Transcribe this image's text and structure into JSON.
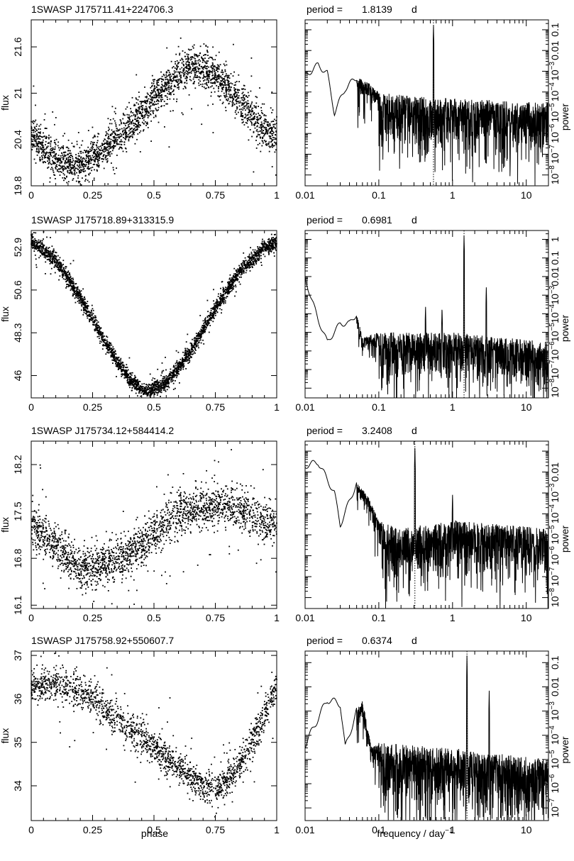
{
  "figure": {
    "x_label_left": "phase",
    "x_label_right": "frequency / day",
    "x_label_right_exponent": "−1",
    "y_label_left": "flux",
    "y_label_right": "power",
    "period_prefix": "period ="
  },
  "chart_data": [
    {
      "type": "scatter",
      "title": "1SWASP J175711.41+224706.3",
      "xlabel": "phase",
      "ylabel": "flux",
      "xlim": [
        0,
        1
      ],
      "ylim": [
        19.8,
        21.95
      ],
      "xticks": [
        "0",
        "0.25",
        "0.5",
        "0.75",
        "1"
      ],
      "yticks": [
        {
          "value": 19.8,
          "label": "19.8"
        },
        {
          "value": 20.4,
          "label": "20.4"
        },
        {
          "value": 21,
          "label": "21"
        },
        {
          "value": 21.6,
          "label": "21.6"
        }
      ],
      "trend": [
        [
          0,
          20.45
        ],
        [
          0.1,
          20.15
        ],
        [
          0.2,
          20.05
        ],
        [
          0.3,
          20.3
        ],
        [
          0.4,
          20.55
        ],
        [
          0.5,
          20.95
        ],
        [
          0.6,
          21.25
        ],
        [
          0.65,
          21.35
        ],
        [
          0.75,
          21.25
        ],
        [
          0.85,
          20.9
        ],
        [
          0.93,
          20.6
        ],
        [
          1,
          20.45
        ]
      ],
      "scatter": 0.22,
      "n_points": 2600
    },
    {
      "type": "line",
      "title": "period =",
      "value": "1.8139",
      "unit": "d",
      "xlabel": "frequency / day^-1",
      "ylabel": "power",
      "xscale": "log",
      "yscale": "log",
      "xlim": [
        0.01,
        20
      ],
      "ylim": [
        3e-09,
        0.3
      ],
      "xticks": [
        "0.01",
        "0.1",
        "1",
        "10"
      ],
      "yticks": [
        "10^-8",
        "10^-7",
        "10^-6",
        "10^-5",
        "10^-4",
        "10^-3",
        "0.01",
        "0.1"
      ],
      "peak_frequency": 0.5513,
      "peaks": [
        {
          "f": 0.5513,
          "p": 0.2
        }
      ],
      "envelope": [
        [
          0.01,
          0.0006
        ],
        [
          0.015,
          0.002
        ],
        [
          0.02,
          0.0008
        ],
        [
          0.025,
          1e-05
        ],
        [
          0.035,
          0.00015
        ],
        [
          0.05,
          0.0005
        ],
        [
          0.07,
          0.0003
        ],
        [
          0.1,
          0.0001
        ],
        [
          0.3,
          6e-05
        ],
        [
          1,
          5e-05
        ],
        [
          20,
          3e-05
        ]
      ]
    },
    {
      "type": "scatter",
      "title": "1SWASP J175718.89+313315.9",
      "xlabel": "phase",
      "ylabel": "flux",
      "xlim": [
        0,
        1
      ],
      "ylim": [
        44.8,
        53.8
      ],
      "xticks": [
        "0",
        "0.25",
        "0.5",
        "0.75",
        "1"
      ],
      "yticks": [
        {
          "value": 46,
          "label": "46"
        },
        {
          "value": 48.3,
          "label": "48.3"
        },
        {
          "value": 50.6,
          "label": "50.6"
        },
        {
          "value": 52.9,
          "label": "52.9"
        }
      ],
      "trend": [
        [
          0,
          53.2
        ],
        [
          0.1,
          52.2
        ],
        [
          0.2,
          50.2
        ],
        [
          0.3,
          47.8
        ],
        [
          0.4,
          45.8
        ],
        [
          0.47,
          45.1
        ],
        [
          0.55,
          45.6
        ],
        [
          0.65,
          47.3
        ],
        [
          0.75,
          49.6
        ],
        [
          0.85,
          51.6
        ],
        [
          0.95,
          52.9
        ],
        [
          1,
          53.2
        ]
      ],
      "scatter": 0.35,
      "n_points": 3000
    },
    {
      "type": "line",
      "title": "period =",
      "value": "0.6981",
      "unit": "d",
      "xlabel": "frequency / day^-1",
      "ylabel": "power",
      "xscale": "log",
      "yscale": "log",
      "xlim": [
        0.01,
        20
      ],
      "ylim": [
        3e-09,
        3
      ],
      "xticks": [
        "0.01",
        "0.1",
        "1",
        "10"
      ],
      "yticks": [
        "10^-8",
        "10^-7",
        "10^-6",
        "10^-5",
        "10^-4",
        "10^-3",
        "0.01",
        "0.1",
        "1"
      ],
      "peak_frequency": 1.4325,
      "peaks": [
        {
          "f": 1.4325,
          "p": 1.8
        },
        {
          "f": 0.43,
          "p": 0.0003
        },
        {
          "f": 0.72,
          "p": 0.00025
        },
        {
          "f": 2.87,
          "p": 0.003
        }
      ],
      "envelope": [
        [
          0.01,
          0.008
        ],
        [
          0.015,
          5e-05
        ],
        [
          0.02,
          3e-06
        ],
        [
          0.03,
          3e-05
        ],
        [
          0.04,
          3e-05
        ],
        [
          0.05,
          0.0001
        ],
        [
          0.06,
          5e-06
        ],
        [
          0.1,
          1e-05
        ],
        [
          1,
          1e-05
        ],
        [
          20,
          3e-06
        ]
      ]
    },
    {
      "type": "scatter",
      "title": "1SWASP J175734.12+584414.2",
      "xlabel": "phase",
      "ylabel": "flux",
      "xlim": [
        0,
        1
      ],
      "ylim": [
        16.05,
        18.55
      ],
      "xticks": [
        "0",
        "0.25",
        "0.5",
        "0.75",
        "1"
      ],
      "yticks": [
        {
          "value": 16.1,
          "label": "16.1"
        },
        {
          "value": 16.8,
          "label": "16.8"
        },
        {
          "value": 17.5,
          "label": "17.5"
        },
        {
          "value": 18.2,
          "label": "18.2"
        }
      ],
      "trend": [
        [
          0,
          17.3
        ],
        [
          0.1,
          16.95
        ],
        [
          0.2,
          16.65
        ],
        [
          0.3,
          16.7
        ],
        [
          0.4,
          16.85
        ],
        [
          0.5,
          17.15
        ],
        [
          0.6,
          17.45
        ],
        [
          0.7,
          17.55
        ],
        [
          0.8,
          17.6
        ],
        [
          0.9,
          17.45
        ],
        [
          1,
          17.3
        ]
      ],
      "scatter": 0.28,
      "n_points": 2200
    },
    {
      "type": "line",
      "title": "period =",
      "value": "3.2408",
      "unit": "d",
      "xlabel": "frequency / day^-1",
      "ylabel": "power",
      "xscale": "log",
      "yscale": "log",
      "xlim": [
        0.01,
        20
      ],
      "ylim": [
        3e-09,
        0.3
      ],
      "xticks": [
        "0.01",
        "0.1",
        "1",
        "10"
      ],
      "yticks": [
        "10^-8",
        "10^-7",
        "10^-6",
        "10^-5",
        "10^-4",
        "10^-3",
        "0.01"
      ],
      "peak_frequency": 0.3086,
      "peaks": [
        {
          "f": 0.3086,
          "p": 0.2
        },
        {
          "f": 1.0,
          "p": 0.001
        }
      ],
      "envelope": [
        [
          0.01,
          0.02
        ],
        [
          0.015,
          0.03
        ],
        [
          0.025,
          0.001
        ],
        [
          0.03,
          3e-05
        ],
        [
          0.05,
          0.003
        ],
        [
          0.07,
          0.0008
        ],
        [
          0.1,
          5e-05
        ],
        [
          0.2,
          2e-05
        ],
        [
          1,
          5e-05
        ],
        [
          20,
          2e-05
        ]
      ]
    },
    {
      "type": "scatter",
      "title": "1SWASP J175758.92+550607.7",
      "xlabel": "phase",
      "ylabel": "flux",
      "xlim": [
        0,
        1
      ],
      "ylim": [
        33.2,
        37.1
      ],
      "xticks": [
        "0",
        "0.25",
        "0.5",
        "0.75",
        "1"
      ],
      "yticks": [
        {
          "value": 34,
          "label": "34"
        },
        {
          "value": 35,
          "label": "35"
        },
        {
          "value": 36,
          "label": "36"
        },
        {
          "value": 37,
          "label": "37"
        }
      ],
      "trend": [
        [
          0,
          36.3
        ],
        [
          0.1,
          36.3
        ],
        [
          0.2,
          36.2
        ],
        [
          0.3,
          35.8
        ],
        [
          0.4,
          35.3
        ],
        [
          0.5,
          34.9
        ],
        [
          0.6,
          34.4
        ],
        [
          0.7,
          34.0
        ],
        [
          0.75,
          33.9
        ],
        [
          0.8,
          34.1
        ],
        [
          0.9,
          35.0
        ],
        [
          0.97,
          35.9
        ],
        [
          1,
          36.3
        ]
      ],
      "scatter": 0.35,
      "n_points": 1800
    },
    {
      "type": "line",
      "title": "period =",
      "value": "0.6374",
      "unit": "d",
      "xlabel": "frequency / day^-1",
      "ylabel": "power",
      "xscale": "log",
      "yscale": "log",
      "xlim": [
        0.01,
        20
      ],
      "ylim": [
        3e-08,
        0.3
      ],
      "xticks": [
        "0.01",
        "0.1",
        "1",
        "10"
      ],
      "yticks": [
        "10^-7",
        "10^-6",
        "10^-5",
        "10^-4",
        "10^-3",
        "0.01",
        "0.1"
      ],
      "peak_frequency": 1.5689,
      "peaks": [
        {
          "f": 1.5689,
          "p": 0.2
        },
        {
          "f": 3.14,
          "p": 0.008
        }
      ],
      "envelope": [
        [
          0.01,
          4e-05
        ],
        [
          0.02,
          0.003
        ],
        [
          0.03,
          0.002
        ],
        [
          0.035,
          3e-05
        ],
        [
          0.05,
          0.001
        ],
        [
          0.06,
          0.003
        ],
        [
          0.08,
          3e-05
        ],
        [
          0.1,
          5e-05
        ],
        [
          1,
          3e-05
        ],
        [
          20,
          1e-05
        ]
      ]
    }
  ]
}
